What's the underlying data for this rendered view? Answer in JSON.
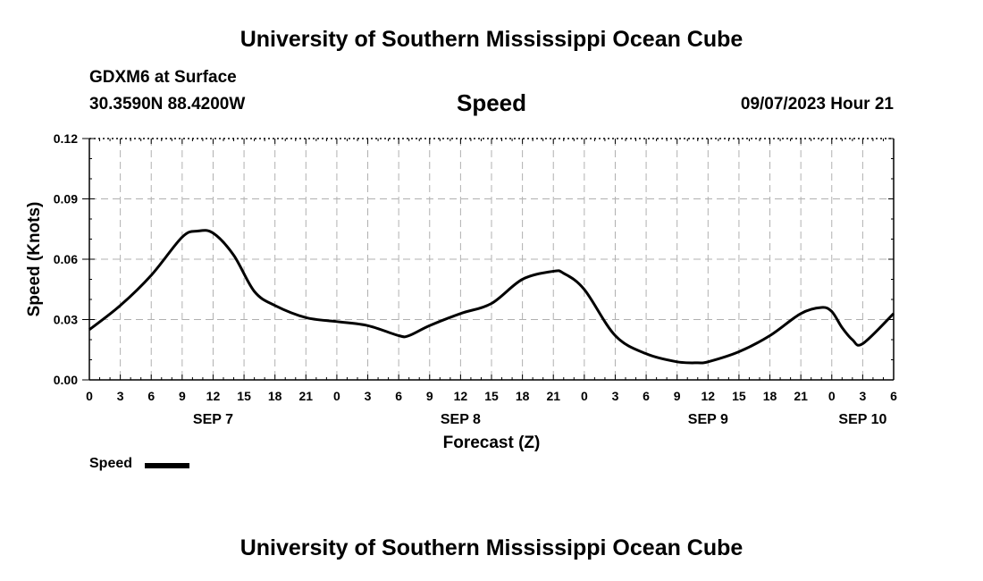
{
  "header": {
    "title": "University of Southern Mississippi Ocean Cube",
    "station": "GDXM6 at Surface",
    "coords": "30.3590N  88.4200W",
    "timestamp": "09/07/2023 Hour 21",
    "footer_title": "University of Southern Mississippi Ocean Cube"
  },
  "chart_data": {
    "type": "line",
    "title": "Speed",
    "xlabel": "Forecast (Z)",
    "ylabel": "Speed (Knots)",
    "ylim": [
      0,
      0.12
    ],
    "xlim_hours": [
      0,
      78
    ],
    "y_ticks": [
      "0.00",
      "0.03",
      "0.06",
      "0.09",
      "0.12"
    ],
    "y_tick_values": [
      0,
      0.03,
      0.06,
      0.09,
      0.12
    ],
    "x_ticks": [
      "0",
      "3",
      "6",
      "9",
      "12",
      "15",
      "18",
      "21",
      "0",
      "3",
      "6",
      "9",
      "12",
      "15",
      "18",
      "21",
      "0",
      "3",
      "6",
      "9",
      "12",
      "15",
      "18",
      "21",
      "0",
      "3",
      "6"
    ],
    "x_tick_hours": [
      0,
      3,
      6,
      9,
      12,
      15,
      18,
      21,
      24,
      27,
      30,
      33,
      36,
      39,
      42,
      45,
      48,
      51,
      54,
      57,
      60,
      63,
      66,
      69,
      72,
      75,
      78
    ],
    "date_labels": [
      {
        "label": "SEP 7",
        "hour": 12
      },
      {
        "label": "SEP 8",
        "hour": 36
      },
      {
        "label": "SEP 9",
        "hour": 60
      },
      {
        "label": "SEP 10",
        "hour": 75
      }
    ],
    "grid": true,
    "series": [
      {
        "name": "Speed",
        "color": "#000000",
        "x": [
          0,
          3,
          6,
          9,
          10.5,
          12,
          14,
          16,
          18,
          21,
          24,
          27,
          30,
          31,
          33,
          36,
          39,
          42,
          45,
          46,
          48,
          51,
          54,
          57,
          59,
          60,
          63,
          66,
          69,
          71,
          72,
          73,
          74,
          75,
          78
        ],
        "values": [
          0.025,
          0.037,
          0.052,
          0.071,
          0.074,
          0.073,
          0.062,
          0.044,
          0.037,
          0.031,
          0.029,
          0.027,
          0.022,
          0.022,
          0.027,
          0.033,
          0.038,
          0.05,
          0.054,
          0.053,
          0.045,
          0.022,
          0.013,
          0.009,
          0.0085,
          0.009,
          0.014,
          0.022,
          0.033,
          0.036,
          0.034,
          0.026,
          0.02,
          0.018,
          0.033
        ]
      }
    ]
  },
  "legend": {
    "label": "Speed"
  }
}
